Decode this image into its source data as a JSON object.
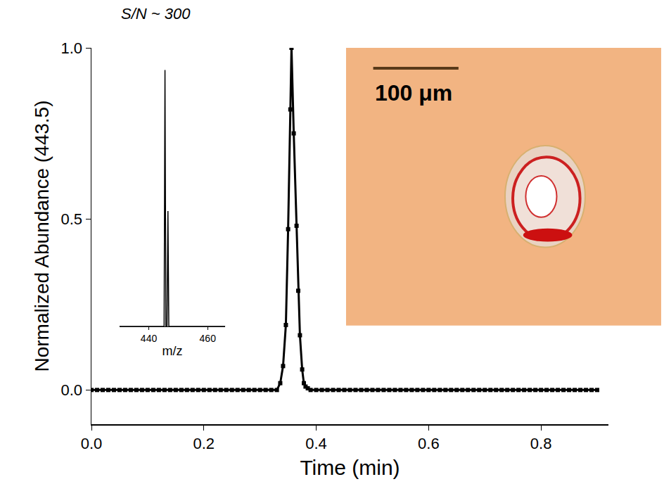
{
  "chart_data": [
    {
      "type": "scatter",
      "x_label": "Time (min)",
      "y_label": "Normalized Abundance (443.5)",
      "xlim": [
        0,
        0.92
      ],
      "xticks": [
        {
          "value": 0,
          "label": "0.0"
        },
        0.2,
        0.4,
        0.6,
        0.8
      ],
      "ylim": [
        -0.1,
        1.0
      ],
      "yticks": [
        {
          "value": 0,
          "label": "0.0"
        },
        0.5,
        {
          "value": 1,
          "label": "1.0"
        }
      ],
      "grid": false,
      "color": "#000000",
      "marker": "square",
      "line_style": "solid",
      "x": [
        0,
        0.01,
        0.02,
        0.03,
        0.04,
        0.05,
        0.06,
        0.07,
        0.08,
        0.09,
        0.1,
        0.11,
        0.12,
        0.13,
        0.14,
        0.15,
        0.16,
        0.17,
        0.18,
        0.19,
        0.2,
        0.21,
        0.22,
        0.23,
        0.24,
        0.25,
        0.26,
        0.27,
        0.28,
        0.29,
        0.3,
        0.31,
        0.32,
        0.33,
        0.336,
        0.341,
        0.346,
        0.35,
        0.354,
        0.356,
        0.36,
        0.365,
        0.368,
        0.371,
        0.375,
        0.378,
        0.381,
        0.385,
        0.39,
        0.4,
        0.41,
        0.42,
        0.43,
        0.44,
        0.45,
        0.46,
        0.47,
        0.48,
        0.49,
        0.5,
        0.51,
        0.52,
        0.53,
        0.54,
        0.55,
        0.56,
        0.57,
        0.58,
        0.59,
        0.6,
        0.61,
        0.62,
        0.63,
        0.64,
        0.65,
        0.66,
        0.67,
        0.68,
        0.69,
        0.7,
        0.71,
        0.72,
        0.73,
        0.74,
        0.75,
        0.76,
        0.77,
        0.78,
        0.79,
        0.8,
        0.81,
        0.82,
        0.83,
        0.84,
        0.85,
        0.86,
        0.87,
        0.88,
        0.89,
        0.9
      ],
      "values": [
        0,
        0,
        0,
        0,
        0,
        0,
        0,
        0,
        0,
        0,
        0,
        0,
        0,
        0,
        0,
        0,
        0,
        0,
        0,
        0,
        0,
        0,
        0,
        0,
        0,
        0,
        0,
        0,
        0,
        0,
        0,
        0,
        0,
        0,
        0.02,
        0.07,
        0.19,
        0.47,
        0.82,
        1.0,
        0.75,
        0.48,
        0.29,
        0.16,
        0.06,
        0.02,
        0.01,
        0.005,
        0,
        0,
        0,
        0,
        0,
        0,
        0,
        0,
        0,
        0,
        0,
        0,
        0,
        0,
        0,
        0,
        0,
        0,
        0,
        0,
        0,
        0,
        0,
        0,
        0,
        0,
        0,
        0,
        0,
        0,
        0,
        0,
        0,
        0,
        0,
        0,
        0,
        0,
        0,
        0,
        0,
        0,
        0,
        0,
        0,
        0,
        0,
        0,
        0,
        0,
        0,
        0
      ]
    },
    {
      "type": "line",
      "title": "S/N ~ 300",
      "x_label": "m/z",
      "xlim": [
        430,
        466
      ],
      "xticks": [
        440,
        460
      ],
      "ylim": [
        0,
        1.05
      ],
      "tick_labels": "x",
      "color": "#000000",
      "line_style": "solid",
      "x": [
        430,
        445.2,
        445.5,
        445.8,
        446.2,
        446.5,
        446.8,
        466
      ],
      "values": [
        0,
        0,
        1,
        0,
        0,
        0.45,
        0,
        0
      ]
    }
  ],
  "image": {
    "scale_bar_label": "100 μm"
  }
}
